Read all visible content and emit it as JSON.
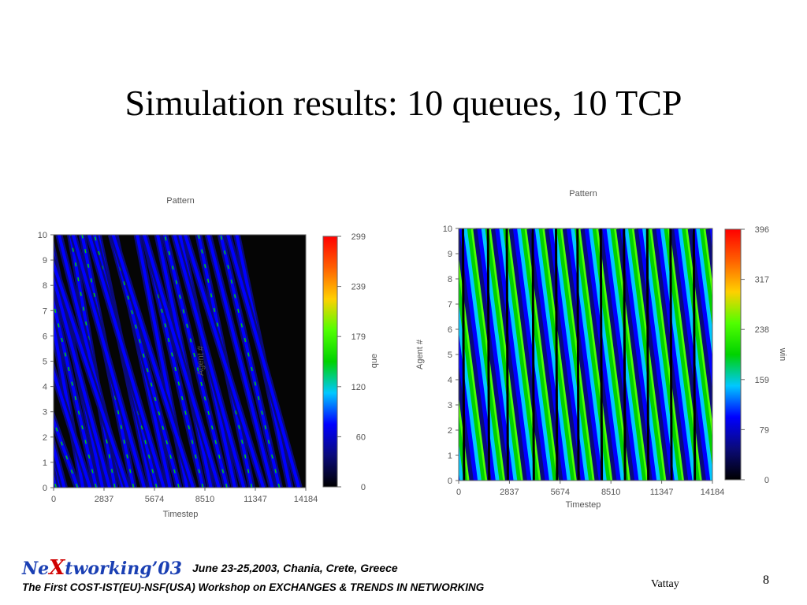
{
  "slide": {
    "title": "Simulation results: 10 queues, 10 TCP",
    "page_number": "8",
    "author": "Vattay"
  },
  "footer": {
    "logo_prefix": "Ne",
    "logo_x": "X",
    "logo_suffix": "tworking’03",
    "date_location": "June 23-25,2003, Chania, Crete, Greece",
    "workshop": "The First COST-IST(EU)-NSF(USA) Workshop on EXCHANGES & TRENDS IN NETWORKING"
  },
  "colors": {
    "colormap": [
      "#000000",
      "#0a0a7a",
      "#0000ff",
      "#00c8ff",
      "#00d200",
      "#50ff00",
      "#ffd000",
      "#ff6000",
      "#ff0000"
    ],
    "left_dark_stripe": "#060606",
    "right_dark_stripe": "#000000"
  },
  "chart_data": [
    {
      "type": "heatmap",
      "title": "Pattern",
      "xlabel": "Timestep",
      "ylabel": "Agent #",
      "colorbar_label": "que",
      "x_ticks": [
        "0",
        "2837",
        "5674",
        "8510",
        "11347",
        "14184"
      ],
      "y_ticks": [
        "0",
        "1",
        "2",
        "3",
        "4",
        "5",
        "6",
        "7",
        "8",
        "9",
        "10"
      ],
      "colorbar_ticks": [
        "0",
        "60",
        "120",
        "179",
        "239",
        "299"
      ],
      "xlim": [
        0,
        14184
      ],
      "ylim": [
        0,
        10
      ],
      "zlim": [
        0,
        299
      ],
      "pattern": "sparse diagonal bursts of queue length on mostly empty (black) background",
      "stripe_times": [
        150,
        400,
        600,
        1350,
        1650,
        2050,
        2400,
        2750,
        3150,
        3450,
        3900,
        4150,
        4500,
        5100,
        5500,
        5800,
        6200,
        6550,
        7050,
        7500,
        7850,
        8400,
        8850,
        9300,
        9750,
        10200,
        10700,
        11150,
        11800,
        12300,
        12700,
        13300,
        13800
      ],
      "stripe_slopes": [
        -420,
        -300,
        -380,
        -510,
        -260,
        -450,
        -330,
        -300,
        -380,
        -250,
        -360,
        -470,
        -290,
        -400,
        -300,
        -350,
        -420,
        -310,
        -380,
        -280,
        -450,
        -330,
        -300,
        -420,
        -350,
        -310,
        -390,
        -300,
        -440,
        -360,
        -330,
        -300,
        -400
      ]
    },
    {
      "type": "heatmap",
      "title": "Pattern",
      "xlabel": "Timestep",
      "ylabel": "Agent #",
      "colorbar_label": "win",
      "x_ticks": [
        "0",
        "2837",
        "5674",
        "8510",
        "11347",
        "14184"
      ],
      "y_ticks": [
        "0",
        "1",
        "2",
        "3",
        "4",
        "5",
        "6",
        "7",
        "8",
        "9",
        "10"
      ],
      "colorbar_ticks": [
        "0",
        "79",
        "159",
        "238",
        "317",
        "396"
      ],
      "xlim": [
        0,
        14184
      ],
      "ylim": [
        0,
        10
      ],
      "zlim": [
        0,
        396
      ],
      "pattern": "regular diagonal wave of congestion window size (sawtooth), period about 1000 timesteps",
      "wave_period": 1000,
      "wave_slope": -180,
      "reset_times": [
        300,
        1700,
        2750,
        4200,
        5500,
        6700,
        8000,
        9300,
        10600,
        11900,
        13200
      ]
    }
  ]
}
